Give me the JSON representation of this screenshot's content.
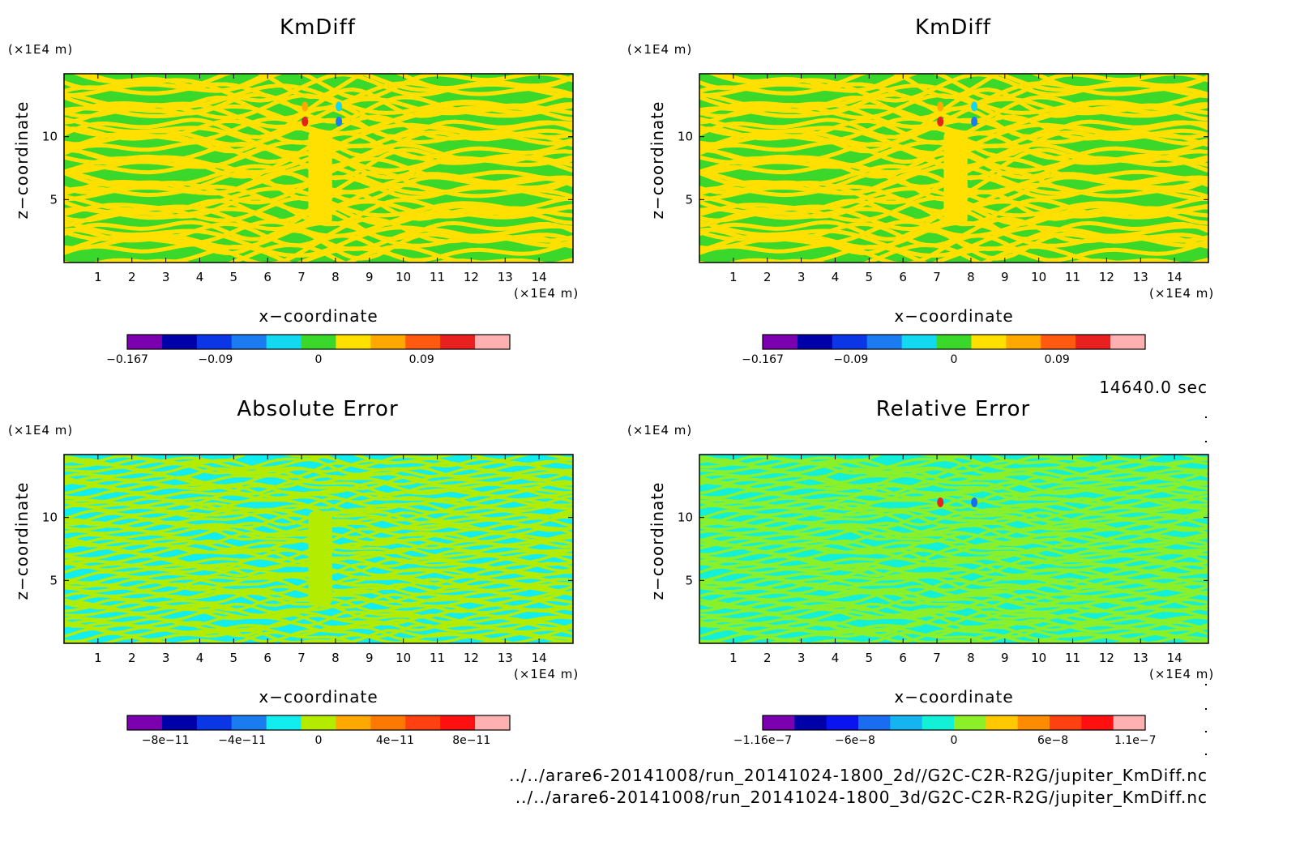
{
  "chart_data": [
    {
      "type": "heatmap",
      "title": "KmDiff",
      "xlabel": "x−coordinate",
      "ylabel": "z−coordinate",
      "x_unit": "(×1E4 m)",
      "y_unit": "(×1E4 m)",
      "xlim": [
        0,
        15
      ],
      "ylim": [
        0,
        15
      ],
      "x_ticks": [
        1,
        2,
        3,
        4,
        5,
        6,
        7,
        8,
        9,
        10,
        11,
        12,
        13,
        14
      ],
      "y_ticks": [
        5,
        10
      ],
      "colorbar": {
        "colors": [
          "#7a00b0",
          "#0000a8",
          "#0a36e6",
          "#1a7cf0",
          "#12d8f0",
          "#3ad82a",
          "#ffe000",
          "#ffa800",
          "#ff5a10",
          "#e82020",
          "#ffb0b0"
        ],
        "tick_labels": [
          "−0.167",
          "−0.09",
          "0",
          "0.09"
        ],
        "tick_values": [
          -0.167,
          -0.09,
          0,
          0.09
        ],
        "range": [
          -0.167,
          0.167
        ]
      },
      "pattern": "kmdiff",
      "dominant_values": [
        "0",
        "0.03"
      ]
    },
    {
      "type": "heatmap",
      "title": "KmDiff",
      "xlabel": "x−coordinate",
      "ylabel": "z−coordinate",
      "x_unit": "(×1E4 m)",
      "y_unit": "(×1E4 m)",
      "xlim": [
        0,
        15
      ],
      "ylim": [
        0,
        15
      ],
      "x_ticks": [
        1,
        2,
        3,
        4,
        5,
        6,
        7,
        8,
        9,
        10,
        11,
        12,
        13,
        14
      ],
      "y_ticks": [
        5,
        10
      ],
      "colorbar": {
        "colors": [
          "#7a00b0",
          "#0000a8",
          "#0a36e6",
          "#1a7cf0",
          "#12d8f0",
          "#3ad82a",
          "#ffe000",
          "#ffa800",
          "#ff5a10",
          "#e82020",
          "#ffb0b0"
        ],
        "tick_labels": [
          "−0.167",
          "−0.09",
          "0",
          "0.09"
        ],
        "tick_values": [
          -0.167,
          -0.09,
          0,
          0.09
        ],
        "range": [
          -0.167,
          0.167
        ]
      },
      "pattern": "kmdiff",
      "dominant_values": [
        "0",
        "0.03"
      ]
    },
    {
      "type": "heatmap",
      "title": "Absolute Error",
      "xlabel": "x−coordinate",
      "ylabel": "z−coordinate",
      "x_unit": "(×1E4 m)",
      "y_unit": "(×1E4 m)",
      "xlim": [
        0,
        15
      ],
      "ylim": [
        0,
        15
      ],
      "x_ticks": [
        1,
        2,
        3,
        4,
        5,
        6,
        7,
        8,
        9,
        10,
        11,
        12,
        13,
        14
      ],
      "y_ticks": [
        5,
        10
      ],
      "colorbar": {
        "colors": [
          "#7a00b0",
          "#0000a8",
          "#0a36e6",
          "#1a7cf0",
          "#12eef0",
          "#b4ec00",
          "#ffa800",
          "#ff7800",
          "#ff4010",
          "#ff1010",
          "#ffb0b0"
        ],
        "tick_labels": [
          "−8e−11",
          "−4e−11",
          "0",
          "4e−11",
          "8e−11"
        ],
        "tick_values": [
          -8e-11,
          -4e-11,
          0,
          4e-11,
          8e-11
        ],
        "range": [
          -1e-10,
          1e-10
        ]
      },
      "pattern": "abserr",
      "dominant_values": [
        "−1e−11",
        "1e−11"
      ]
    },
    {
      "type": "heatmap",
      "title": "Relative Error",
      "xlabel": "x−coordinate",
      "ylabel": "z−coordinate",
      "x_unit": "(×1E4 m)",
      "y_unit": "(×1E4 m)",
      "xlim": [
        0,
        15
      ],
      "ylim": [
        0,
        15
      ],
      "x_ticks": [
        1,
        2,
        3,
        4,
        5,
        6,
        7,
        8,
        9,
        10,
        11,
        12,
        13,
        14
      ],
      "y_ticks": [
        5,
        10
      ],
      "colorbar": {
        "colors": [
          "#7a00b0",
          "#0000a8",
          "#0a14f0",
          "#1a6cf0",
          "#14b4f0",
          "#12f0d8",
          "#8cf028",
          "#ffc800",
          "#ff8c00",
          "#ff4010",
          "#ff1010",
          "#ffb0b0"
        ],
        "tick_labels": [
          "−1.16e−7",
          "−6e−8",
          "0",
          "6e−8",
          "1.1e−7"
        ],
        "tick_values": [
          -1.16e-07,
          -6e-08,
          0,
          6e-08,
          1.1e-07
        ],
        "range": [
          -1.16e-07,
          1.16e-07
        ]
      },
      "pattern": "relerr",
      "dominant_values": [
        "0",
        "1e−8"
      ]
    }
  ],
  "timestamp": "14640.0 sec",
  "file_paths": [
    "../../arare6-20141008/run_20141024-1800_2d//G2C-C2R-R2G/jupiter_KmDiff.nc",
    "../../arare6-20141008/run_20141024-1800_3d/G2C-C2R-R2G/jupiter_KmDiff.nc"
  ]
}
